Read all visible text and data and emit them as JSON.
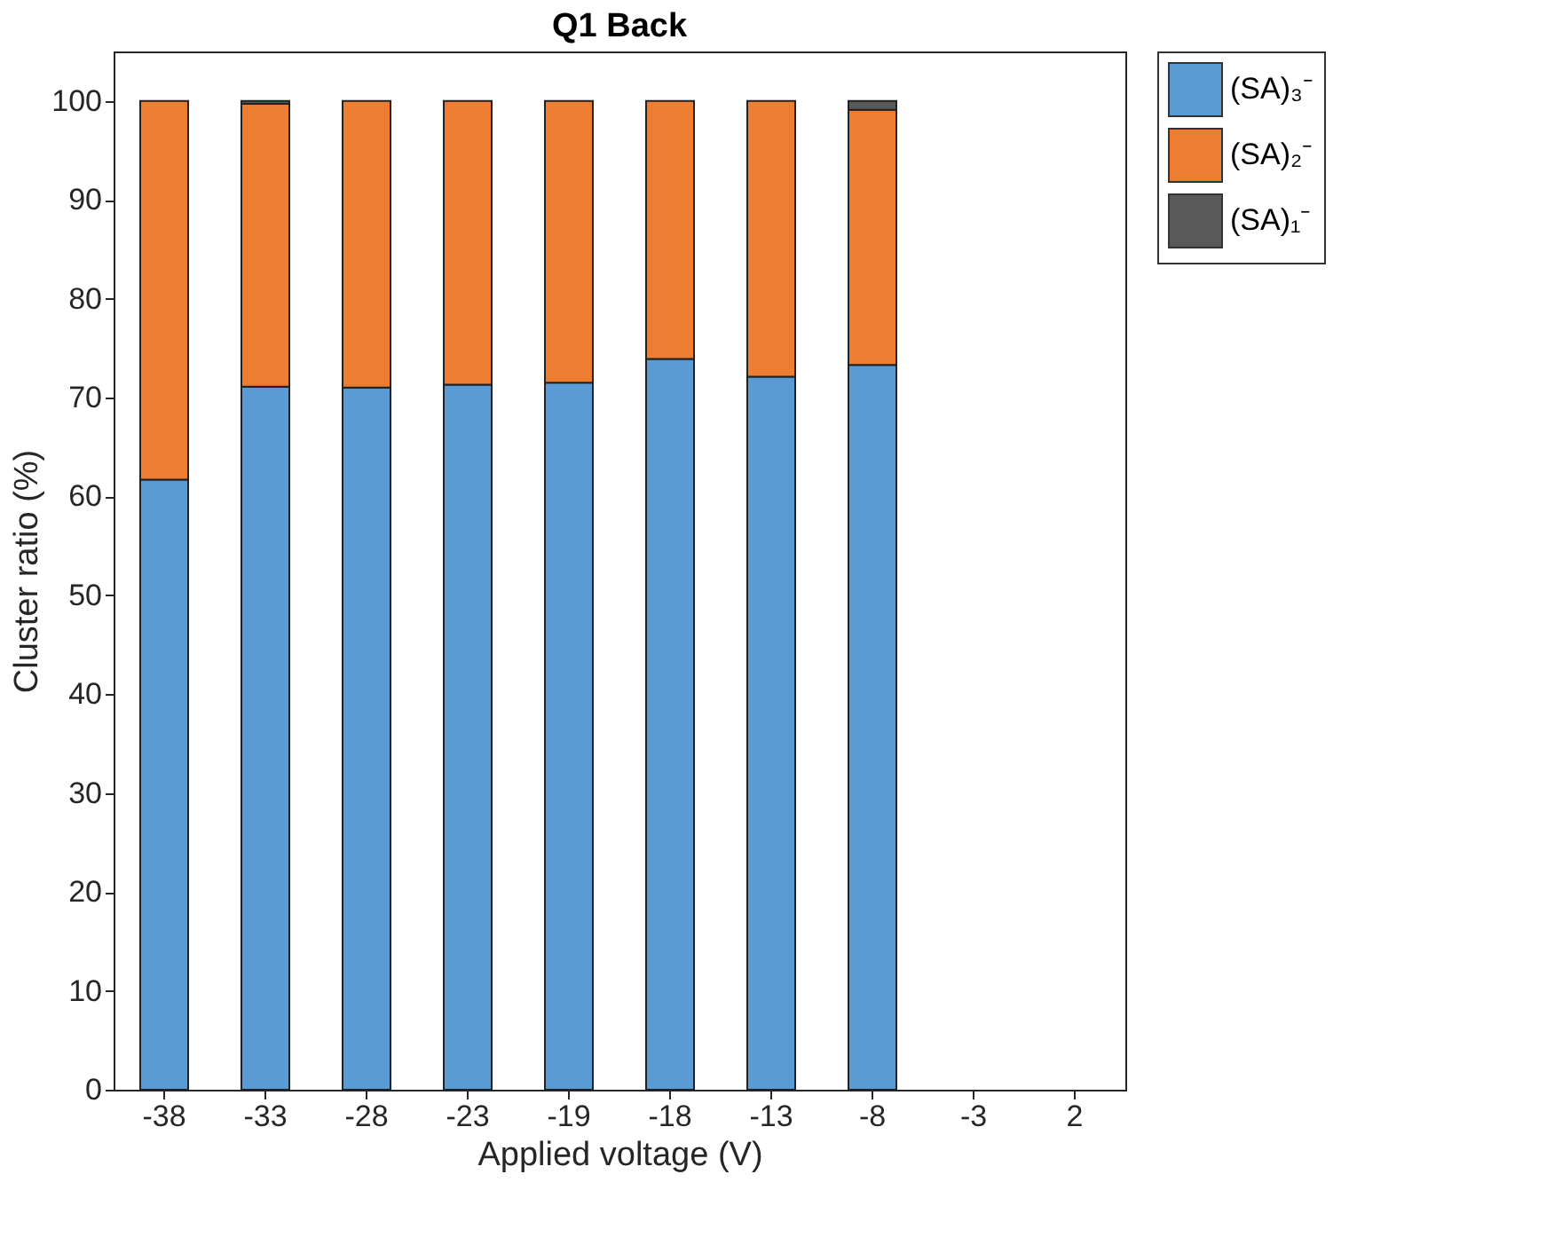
{
  "chart_data": {
    "type": "bar",
    "title": "Q1 Back",
    "xlabel": "Applied voltage (V)",
    "ylabel": "Cluster ratio (%)",
    "categories": [
      "-38",
      "-33",
      "-28",
      "-23",
      "-19",
      "-18",
      "-13",
      "-8",
      "-3",
      "2"
    ],
    "stacked": true,
    "series": [
      {
        "name": "(SA)₃⁻",
        "color": "#5b9bd5",
        "values": [
          61.7,
          71.1,
          71.0,
          71.3,
          71.5,
          73.9,
          72.1,
          73.3,
          null,
          null
        ]
      },
      {
        "name": "(SA)₂⁻",
        "color": "#ed7d31",
        "values": [
          38.3,
          28.6,
          29.0,
          28.7,
          28.5,
          26.1,
          27.9,
          25.8,
          null,
          null
        ]
      },
      {
        "name": "(SA)₁⁻",
        "color": "#595959",
        "values": [
          null,
          0.3,
          null,
          null,
          null,
          null,
          null,
          0.9,
          null,
          null
        ]
      }
    ],
    "ylim": [
      0,
      105
    ],
    "yticks": [
      0,
      10,
      20,
      30,
      40,
      50,
      60,
      70,
      80,
      90,
      100
    ],
    "grid": false,
    "legend": "top right"
  }
}
